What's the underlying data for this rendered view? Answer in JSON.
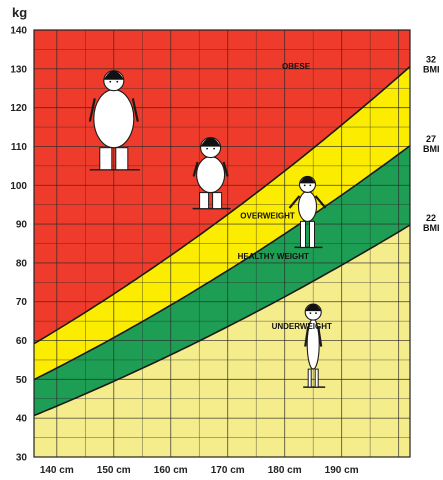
{
  "chart_data": {
    "type": "area",
    "x_unit": "cm",
    "y_unit": "kg",
    "xlim": [
      136,
      202
    ],
    "ylim": [
      30,
      140
    ],
    "x_ticks": [
      140,
      150,
      160,
      170,
      180,
      190
    ],
    "x_tick_labels": [
      "140 cm",
      "150 cm",
      "160 cm",
      "170 cm",
      "180 cm",
      "190 cm"
    ],
    "y_ticks": [
      30,
      40,
      50,
      60,
      70,
      80,
      90,
      100,
      110,
      120,
      130,
      140
    ],
    "y_tick_labels": [
      "30",
      "40",
      "50",
      "60",
      "70",
      "80",
      "90",
      "100",
      "110",
      "120",
      "130",
      "140"
    ],
    "grid": true,
    "boundaries": [
      {
        "name": "22 BMI",
        "bmi": 22,
        "label_line1": "22",
        "label_line2": "BMI"
      },
      {
        "name": "27 BMI",
        "bmi": 27,
        "label_line1": "27",
        "label_line2": "BMI"
      },
      {
        "name": "32 BMI",
        "bmi": 32,
        "label_line1": "32",
        "label_line2": "BMI"
      }
    ],
    "zones": [
      {
        "name": "UNDERWEIGHT",
        "color": "#f5ec8c",
        "label_pos": [
          183,
          63
        ]
      },
      {
        "name": "HEALTHY WEIGHT",
        "color": "#1e9e55",
        "label_pos": [
          178,
          81
        ]
      },
      {
        "name": "OVERWEIGHT",
        "color": "#fbec00",
        "label_pos": [
          177,
          91.5
        ]
      },
      {
        "name": "OBESE",
        "color": "#ee3b2b",
        "label_pos": [
          182,
          130
        ]
      }
    ],
    "figures": [
      {
        "name": "obese-figure",
        "x": 150,
        "y": 104
      },
      {
        "name": "overweight-figure",
        "x": 167,
        "y": 94
      },
      {
        "name": "healthy-figure",
        "x": 184,
        "y": 84
      },
      {
        "name": "underweight-figure",
        "x": 185,
        "y": 48
      }
    ]
  }
}
